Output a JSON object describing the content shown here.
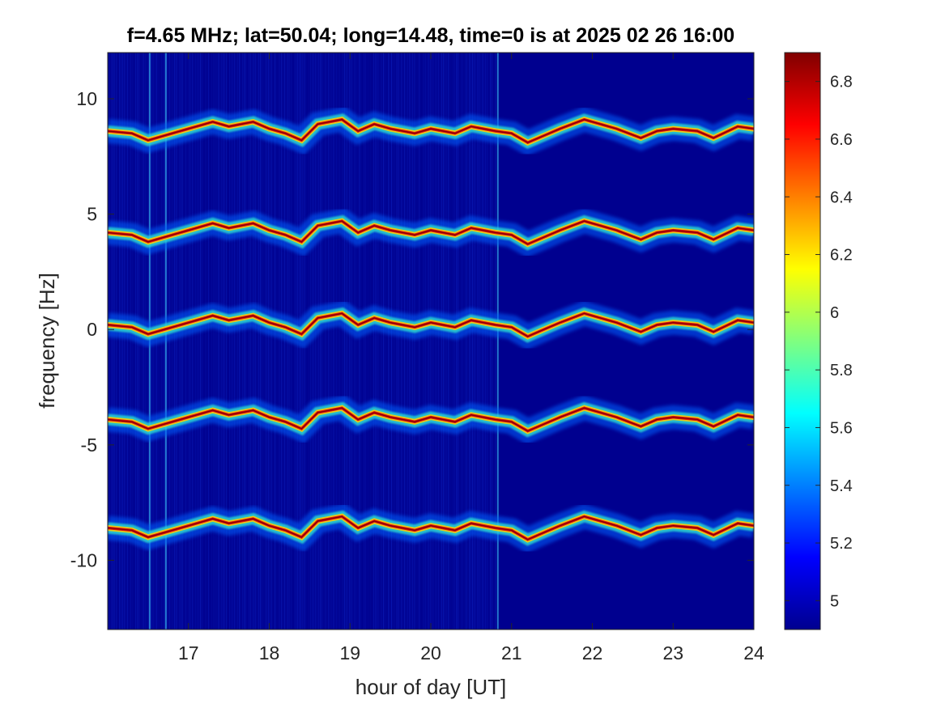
{
  "chart_data": {
    "type": "heatmap",
    "title": "f=4.65 MHz;  lat=50.04; long=14.48, time=0 is at 2025 02 26 16:00",
    "xlabel": "hour of day [UT]",
    "ylabel": "frequency [Hz]",
    "xlim": [
      16,
      24
    ],
    "ylim": [
      -13,
      12
    ],
    "xticks": [
      17,
      18,
      19,
      20,
      21,
      22,
      23,
      24
    ],
    "xtick_labels": [
      "17",
      "18",
      "19",
      "20",
      "21",
      "22",
      "23",
      "24"
    ],
    "yticks": [
      -10,
      -5,
      0,
      5,
      10
    ],
    "ytick_labels": [
      "-10",
      "-5",
      "0",
      "5",
      "10"
    ],
    "colormap": "jet",
    "background_color": "#00008f",
    "clim": [
      4.9,
      6.9
    ],
    "colorbar_ticks": [
      5,
      5.2,
      5.4,
      5.6,
      5.8,
      6,
      6.2,
      6.4,
      6.6,
      6.8
    ],
    "colorbar_tick_labels": [
      "5",
      "5.2",
      "5.4",
      "5.6",
      "5.8",
      "6",
      "6.2",
      "6.4",
      "6.6",
      "6.8"
    ],
    "traces": [
      {
        "base_frequency": 8.6,
        "offset": 0.0
      },
      {
        "base_frequency": 4.2,
        "offset": 0.0
      },
      {
        "base_frequency": 0.2,
        "offset": 0.0
      },
      {
        "base_frequency": -3.9,
        "offset": 0.0
      },
      {
        "base_frequency": -8.6,
        "offset": 0.0
      }
    ],
    "trace_profile": {
      "x": [
        16.0,
        16.3,
        16.5,
        16.8,
        17.0,
        17.3,
        17.5,
        17.8,
        18.0,
        18.2,
        18.4,
        18.6,
        18.9,
        19.1,
        19.3,
        19.5,
        19.8,
        20.0,
        20.3,
        20.5,
        20.8,
        21.0,
        21.2,
        21.4,
        21.6,
        21.9,
        22.1,
        22.3,
        22.6,
        22.8,
        23.0,
        23.3,
        23.5,
        23.8,
        24.0
      ],
      "y": [
        0.0,
        -0.1,
        -0.4,
        -0.1,
        0.1,
        0.4,
        0.2,
        0.4,
        0.1,
        -0.1,
        -0.4,
        0.3,
        0.5,
        0.0,
        0.3,
        0.1,
        -0.1,
        0.1,
        -0.1,
        0.2,
        0.0,
        -0.1,
        -0.5,
        -0.2,
        0.1,
        0.5,
        0.3,
        0.1,
        -0.3,
        0.0,
        0.1,
        0.0,
        -0.3,
        0.2,
        0.1
      ]
    },
    "noise_band": {
      "x_start": 16.0,
      "x_end": 20.8
    },
    "bright_lines_x": [
      16.52,
      16.72,
      20.83
    ]
  }
}
